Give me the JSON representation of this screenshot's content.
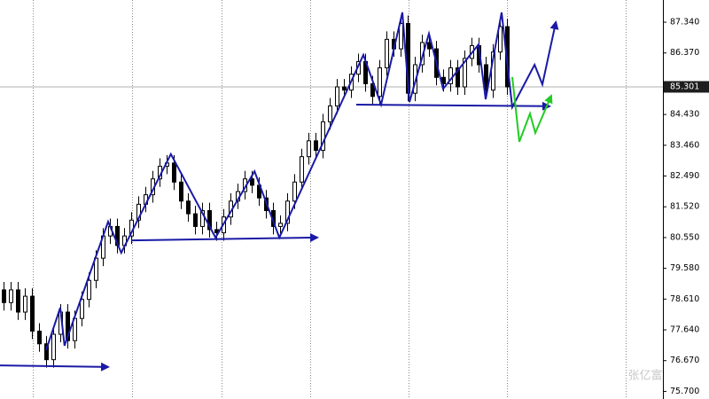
{
  "chart_data": {
    "type": "candlestick",
    "open": [
      78.9,
      78.5,
      78.9,
      78.2,
      78.7,
      77.6,
      77.2,
      76.7,
      77.5,
      78.2,
      77.3,
      78.0,
      78.6,
      79.2,
      79.9,
      80.6,
      80.9,
      80.3,
      80.6,
      81.1,
      81.6,
      81.9,
      82.4,
      82.8,
      82.9,
      82.3,
      81.7,
      81.3,
      80.9,
      81.4,
      80.8,
      80.7,
      81.2,
      81.7,
      82.0,
      82.4,
      82.2,
      81.8,
      81.4,
      80.9,
      81.0,
      81.7,
      82.3,
      83.1,
      83.6,
      83.3,
      84.2,
      84.7,
      85.3,
      85.2,
      85.7,
      86.1,
      85.4,
      85.0,
      85.9,
      86.8,
      86.5,
      87.3,
      85.1,
      86.0,
      86.7,
      86.5,
      85.6,
      85.4,
      85.9,
      85.3,
      86.2,
      86.6,
      86.0,
      85.2,
      86.4,
      87.2
    ],
    "high": [
      79.15,
      79.15,
      79.15,
      78.95,
      78.95,
      77.85,
      77.45,
      77.75,
      78.45,
      78.45,
      78.25,
      78.85,
      79.45,
      80.15,
      80.85,
      81.15,
      81.15,
      80.85,
      81.35,
      81.85,
      82.15,
      82.65,
      83.05,
      83.15,
      83.15,
      82.55,
      81.95,
      81.55,
      81.65,
      81.65,
      81.05,
      81.45,
      81.95,
      82.25,
      82.65,
      82.65,
      82.45,
      82.05,
      81.65,
      81.25,
      81.95,
      82.55,
      83.35,
      83.85,
      83.85,
      84.45,
      84.95,
      85.55,
      85.55,
      85.95,
      86.35,
      86.35,
      85.65,
      86.15,
      87.05,
      87.05,
      87.55,
      87.55,
      86.25,
      86.95,
      86.95,
      86.75,
      85.85,
      86.15,
      86.15,
      86.45,
      86.85,
      86.85,
      86.25,
      86.65,
      87.45,
      87.45
    ],
    "low": [
      78.25,
      78.25,
      77.95,
      77.95,
      77.35,
      76.95,
      76.45,
      76.45,
      77.25,
      77.05,
      77.05,
      77.75,
      78.35,
      78.95,
      79.65,
      80.35,
      80.05,
      80.05,
      80.35,
      80.85,
      81.35,
      81.65,
      82.15,
      82.55,
      82.05,
      81.45,
      81.05,
      80.65,
      80.65,
      80.55,
      80.45,
      80.45,
      80.95,
      81.45,
      81.75,
      81.95,
      81.55,
      81.15,
      80.65,
      80.65,
      80.75,
      81.45,
      82.05,
      82.85,
      83.05,
      83.05,
      83.95,
      84.45,
      84.95,
      84.95,
      85.45,
      85.15,
      84.75,
      84.75,
      85.65,
      86.25,
      86.25,
      84.85,
      84.85,
      85.75,
      86.25,
      85.35,
      85.15,
      85.15,
      85.05,
      85.05,
      85.95,
      85.75,
      84.95,
      84.95,
      86.15,
      85.05
    ],
    "close": [
      78.5,
      78.9,
      78.2,
      78.7,
      77.6,
      77.2,
      76.7,
      77.5,
      78.2,
      77.3,
      78.0,
      78.6,
      79.2,
      79.9,
      80.6,
      80.9,
      80.3,
      80.6,
      81.1,
      81.6,
      81.9,
      82.4,
      82.8,
      82.9,
      82.3,
      81.7,
      81.3,
      80.9,
      81.4,
      80.8,
      80.7,
      81.2,
      81.7,
      82.0,
      82.4,
      82.2,
      81.8,
      81.4,
      80.9,
      81.0,
      81.7,
      82.3,
      83.1,
      83.6,
      83.3,
      84.2,
      84.7,
      85.3,
      85.2,
      85.7,
      86.1,
      85.4,
      85.0,
      85.9,
      86.8,
      86.5,
      87.3,
      85.1,
      86.0,
      86.7,
      86.5,
      85.6,
      85.4,
      85.9,
      85.3,
      86.2,
      86.6,
      86.0,
      85.2,
      86.4,
      87.2,
      85.3
    ],
    "up_color": "#ffffff",
    "down_color": "#000000",
    "xlim": [
      -0.5,
      93
    ],
    "ylim": [
      75.46,
      88.04
    ],
    "yticks": [
      {
        "value": 87.34,
        "label": "87.340"
      },
      {
        "value": 86.37,
        "label": "86.370"
      },
      {
        "value": 84.43,
        "label": "84.430"
      },
      {
        "value": 83.46,
        "label": "83.460"
      },
      {
        "value": 82.49,
        "label": "82.490"
      },
      {
        "value": 81.52,
        "label": "81.520"
      },
      {
        "value": 80.55,
        "label": "80.550"
      },
      {
        "value": 79.58,
        "label": "79.580"
      },
      {
        "value": 78.61,
        "label": "78.610"
      },
      {
        "value": 77.64,
        "label": "77.640"
      },
      {
        "value": 76.67,
        "label": "76.670"
      },
      {
        "value": 75.7,
        "label": "75.700"
      }
    ],
    "period_separators": [
      4.125,
      18.125,
      30.75,
      43.25,
      57.125,
      71,
      87.75
    ],
    "current_price": {
      "value": 85.301,
      "label": "85.301"
    },
    "lines": [
      {
        "color": "#1a1aa6",
        "x": [
          -0.5,
          14.75
        ],
        "y": [
          76.52,
          76.47
        ]
      },
      {
        "color": "#1a1aa6",
        "x": [
          6,
          8,
          8.6,
          14.75,
          16.6,
          23.6,
          29.9,
          35.4,
          38.9,
          50.75,
          53.25,
          56.25,
          57.25,
          60,
          62,
          67,
          68,
          70.25,
          71.75,
          74.9,
          76,
          77.9
        ],
        "y": [
          77.0,
          78.34,
          77.14,
          81.05,
          80.07,
          83.18,
          80.55,
          82.64,
          80.55,
          86.31,
          84.74,
          87.65,
          84.82,
          86.98,
          85.24,
          86.64,
          84.91,
          87.65,
          84.66,
          86.0,
          85.38,
          87.34
        ]
      },
      {
        "color": "#1a1aa6",
        "x": [
          18,
          44.25
        ],
        "y": [
          80.46,
          80.55
        ]
      },
      {
        "color": "#1a1aa6",
        "x": [
          49.75,
          77
        ],
        "y": [
          84.74,
          84.69
        ]
      },
      {
        "color": "#22cc22",
        "x": [
          71.75,
          72.75,
          74.25,
          75,
          77.25
        ],
        "y": [
          85.61,
          83.57,
          84.46,
          83.85,
          85.02
        ]
      }
    ],
    "watermark": "张亿富"
  }
}
